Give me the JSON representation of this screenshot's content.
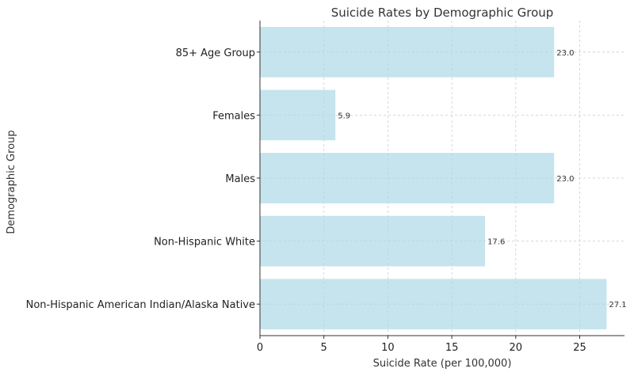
{
  "chart_data": {
    "type": "bar",
    "orientation": "horizontal",
    "title": "Suicide Rates by Demographic Group",
    "xlabel": "Suicide Rate (per 100,000)",
    "ylabel": "Demographic Group",
    "categories": [
      "85+ Age Group",
      "Females",
      "Males",
      "Non-Hispanic White",
      "Non-Hispanic American Indian/Alaska Native"
    ],
    "values": [
      23.0,
      5.9,
      23.0,
      17.6,
      27.1
    ],
    "data_labels": [
      "23.0",
      "5.9",
      "23.0",
      "17.6",
      "27.1"
    ],
    "xlim": [
      0,
      28.5
    ],
    "xticks": [
      0,
      5,
      10,
      15,
      20,
      25
    ],
    "grid": true,
    "bar_color": "#add8e6",
    "bar_opacity": 0.7
  }
}
